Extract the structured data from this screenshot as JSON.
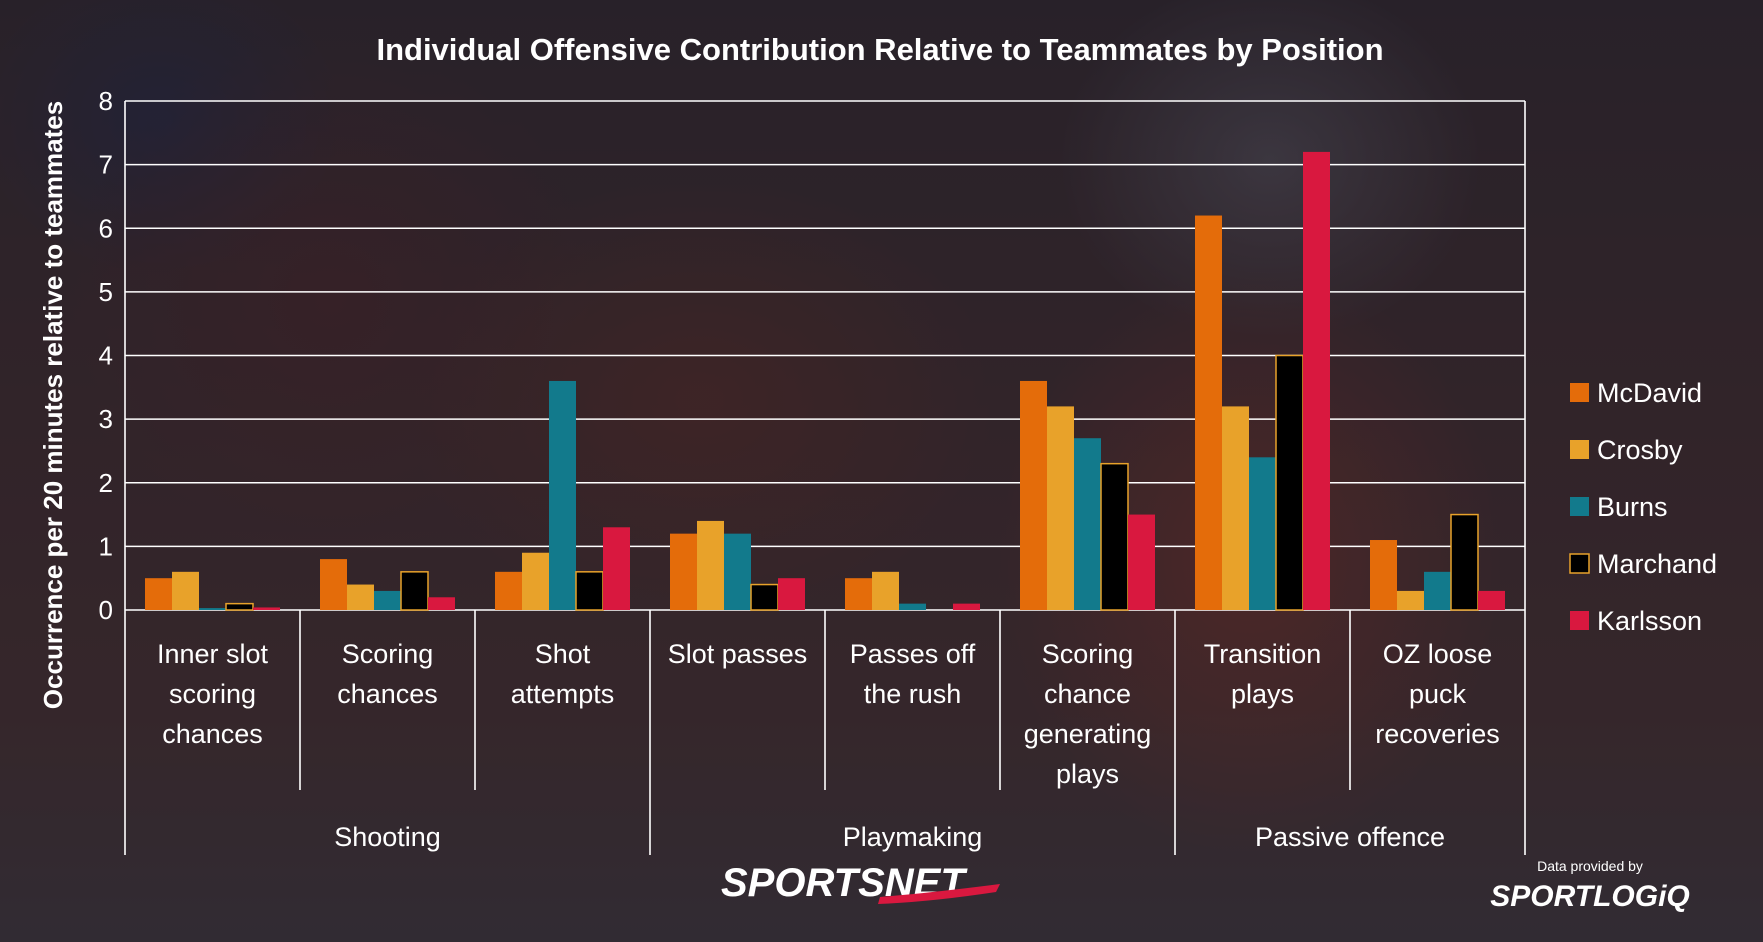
{
  "chart_data": {
    "type": "bar",
    "title": "Individual Offensive Contribution Relative to Teammates by Position",
    "ylabel": "Occurrence per 20 minutes relative to teammates",
    "xlabel": "",
    "ylim": [
      0,
      8
    ],
    "yticks": [
      "0",
      "1",
      "2",
      "3",
      "4",
      "5",
      "6",
      "7",
      "8"
    ],
    "grid": true,
    "legend_position": "right",
    "categories": [
      [
        "Inner slot",
        "scoring",
        "chances"
      ],
      [
        "Scoring",
        "chances"
      ],
      [
        "Shot",
        "attempts"
      ],
      [
        "Slot passes"
      ],
      [
        "Passes off",
        "the rush"
      ],
      [
        "Scoring",
        "chance",
        "generating",
        "plays"
      ],
      [
        "Transition",
        "plays"
      ],
      [
        "OZ loose",
        "puck",
        "recoveries"
      ]
    ],
    "groups": [
      {
        "label": "Shooting",
        "span": [
          0,
          2
        ]
      },
      {
        "label": "Playmaking",
        "span": [
          3,
          5
        ]
      },
      {
        "label": "Passive offence",
        "span": [
          6,
          7
        ]
      }
    ],
    "series": [
      {
        "name": "McDavid",
        "color": "#e46c0a",
        "values": [
          0.5,
          0.8,
          0.6,
          1.2,
          0.5,
          3.6,
          6.2,
          1.1
        ]
      },
      {
        "name": "Crosby",
        "color": "#e8a22a",
        "values": [
          0.6,
          0.4,
          0.9,
          1.4,
          0.6,
          3.2,
          3.2,
          0.3
        ]
      },
      {
        "name": "Burns",
        "color": "#127a8c",
        "values": [
          0.03,
          0.3,
          3.6,
          1.2,
          0.1,
          2.7,
          2.4,
          0.6
        ]
      },
      {
        "name": "Marchand",
        "color": "#000000",
        "values": [
          0.1,
          0.6,
          0.6,
          0.4,
          0.0,
          2.3,
          4.0,
          1.5
        ]
      },
      {
        "name": "Karlsson",
        "color": "#d9183f",
        "values": [
          0.04,
          0.2,
          1.3,
          0.5,
          0.1,
          1.5,
          7.2,
          0.3
        ]
      }
    ]
  },
  "branding": {
    "broadcaster_logo": "SPORTSNET",
    "credit_prefix": "Data provided by",
    "credit_logo": "SPORTLOGiQ"
  }
}
